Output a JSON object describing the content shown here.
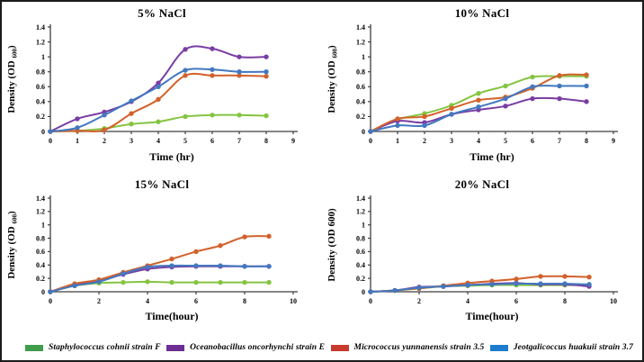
{
  "figure": {
    "background": "#ffffff",
    "border_color": "#1b1b1b",
    "axis_color": "#3f3f3f"
  },
  "legend": {
    "position": "bottom",
    "items": [
      {
        "label": "Staphylococcus cohnii strain F",
        "color": "#3f9d4c"
      },
      {
        "label": "Oceanobacillus oncorhynchi strain E",
        "color": "#6c2e93"
      },
      {
        "label": "Micrococcus yunnanensis strain 3.5",
        "color": "#c8392e"
      },
      {
        "label": "Jeotgalicoccus huakuii strain 3.7",
        "color": "#1d7ccc"
      }
    ]
  },
  "chart_data": [
    {
      "type": "line",
      "title": "5% NaCl",
      "xlabel": "Time (hr)",
      "ylabel": {
        "prefix": "Density (OD ",
        "sub": "600",
        "suffix": ")"
      },
      "xlim": [
        0,
        9
      ],
      "ylim": [
        0,
        1.4
      ],
      "xticks": [
        0,
        1,
        2,
        3,
        4,
        5,
        6,
        7,
        8,
        9
      ],
      "yticks": [
        0,
        0.2,
        0.4,
        0.6,
        0.8,
        1,
        1.2,
        1.4
      ],
      "grid": false,
      "x": [
        0,
        1,
        2,
        3,
        4,
        5,
        6,
        7,
        8
      ],
      "series": [
        {
          "name": "Staphylococcus cohnii strain F",
          "color": "#85c441",
          "values": [
            0,
            0.01,
            0.04,
            0.1,
            0.13,
            0.2,
            0.22,
            0.22,
            0.21
          ]
        },
        {
          "name": "Oceanobacillus oncorhynchi strain E",
          "color": "#7a3da3",
          "values": [
            0,
            0.17,
            0.26,
            0.4,
            0.65,
            1.1,
            1.11,
            1.0,
            1.0
          ]
        },
        {
          "name": "Micrococcus yunnanensis strain 3.5",
          "color": "#d2622b",
          "values": [
            0,
            0.01,
            0.02,
            0.24,
            0.43,
            0.75,
            0.75,
            0.75,
            0.74
          ]
        },
        {
          "name": "Jeotgalicoccus huakuii strain 3.7",
          "color": "#4278c0",
          "values": [
            0,
            0.05,
            0.22,
            0.41,
            0.6,
            0.82,
            0.83,
            0.8,
            0.8
          ]
        }
      ]
    },
    {
      "type": "line",
      "title": "10% NaCl",
      "xlabel": "Time (hr)",
      "ylabel": {
        "prefix": "Density (OD ",
        "sub": "600",
        "suffix": ")"
      },
      "xlim": [
        0,
        9
      ],
      "ylim": [
        0,
        1.4
      ],
      "xticks": [
        0,
        1,
        2,
        3,
        4,
        5,
        6,
        7,
        8,
        9
      ],
      "yticks": [
        0,
        0.2,
        0.4,
        0.6,
        0.8,
        1,
        1.2,
        1.4
      ],
      "grid": false,
      "x": [
        0,
        1,
        2,
        3,
        4,
        5,
        6,
        7,
        8
      ],
      "series": [
        {
          "name": "Staphylococcus cohnii strain F",
          "color": "#85c441",
          "values": [
            0,
            0.16,
            0.24,
            0.35,
            0.51,
            0.61,
            0.73,
            0.74,
            0.74
          ]
        },
        {
          "name": "Oceanobacillus oncorhynchi strain E",
          "color": "#7a3da3",
          "values": [
            0,
            0.14,
            0.12,
            0.23,
            0.29,
            0.34,
            0.44,
            0.44,
            0.4
          ]
        },
        {
          "name": "Micrococcus yunnanensis strain 3.5",
          "color": "#d2622b",
          "values": [
            0,
            0.17,
            0.2,
            0.31,
            0.42,
            0.46,
            0.58,
            0.75,
            0.76
          ]
        },
        {
          "name": "Jeotgalicoccus huakuii strain 3.7",
          "color": "#4278c0",
          "values": [
            0,
            0.08,
            0.08,
            0.23,
            0.33,
            0.44,
            0.6,
            0.61,
            0.61
          ]
        }
      ]
    },
    {
      "type": "line",
      "title": "15% NaCl",
      "xlabel": "Time(hour)",
      "ylabel": {
        "prefix": "Density (OD ",
        "sub": "600",
        "suffix": ")"
      },
      "xlim": [
        0,
        10
      ],
      "ylim": [
        0,
        1.4
      ],
      "xticks": [
        0,
        2,
        4,
        6,
        8,
        10
      ],
      "yticks": [
        0,
        0.2,
        0.4,
        0.6,
        0.8,
        1,
        1.2,
        1.4
      ],
      "grid": false,
      "x": [
        0,
        1,
        2,
        3,
        4,
        5,
        6,
        7,
        8,
        9
      ],
      "series": [
        {
          "name": "Staphylococcus cohnii strain F",
          "color": "#85c441",
          "values": [
            0,
            0.09,
            0.13,
            0.14,
            0.15,
            0.14,
            0.14,
            0.14,
            0.14,
            0.14
          ]
        },
        {
          "name": "Oceanobacillus oncorhynchi strain E",
          "color": "#7a3da3",
          "values": [
            0,
            0.1,
            0.16,
            0.26,
            0.34,
            0.37,
            0.38,
            0.38,
            0.38,
            0.38
          ]
        },
        {
          "name": "Micrococcus yunnanensis strain 3.5",
          "color": "#d2622b",
          "values": [
            0,
            0.12,
            0.18,
            0.29,
            0.39,
            0.49,
            0.6,
            0.69,
            0.82,
            0.83
          ]
        },
        {
          "name": "Jeotgalicoccus huakuii strain 3.7",
          "color": "#4278c0",
          "values": [
            0,
            0.09,
            0.15,
            0.27,
            0.37,
            0.39,
            0.39,
            0.39,
            0.38,
            0.38
          ]
        }
      ]
    },
    {
      "type": "line",
      "title": "20% NaCl",
      "xlabel": "Time(hour)",
      "ylabel": {
        "prefix": "Density (OD 600)",
        "sub": "",
        "suffix": ""
      },
      "xlim": [
        0,
        10
      ],
      "ylim": [
        0,
        1.4
      ],
      "xticks": [
        0,
        2,
        4,
        6,
        8,
        10
      ],
      "yticks": [
        0,
        0.2,
        0.4,
        0.6,
        0.8,
        1,
        1.2,
        1.4
      ],
      "grid": false,
      "x": [
        0,
        1,
        2,
        3,
        4,
        5,
        6,
        7,
        8,
        9
      ],
      "series": [
        {
          "name": "Staphylococcus cohnii strain F",
          "color": "#85c441",
          "values": [
            0,
            0.02,
            0.05,
            0.08,
            0.09,
            0.1,
            0.1,
            0.1,
            0.1,
            0.1
          ]
        },
        {
          "name": "Oceanobacillus oncorhynchi strain E",
          "color": "#7a3da3",
          "values": [
            0,
            0.02,
            0.07,
            0.08,
            0.1,
            0.12,
            0.13,
            0.11,
            0.11,
            0.08
          ]
        },
        {
          "name": "Micrococcus yunnanensis strain 3.5",
          "color": "#d2622b",
          "values": [
            0,
            0.02,
            0.05,
            0.09,
            0.13,
            0.16,
            0.19,
            0.23,
            0.23,
            0.22
          ]
        },
        {
          "name": "Jeotgalicoccus huakuii strain 3.7",
          "color": "#4278c0",
          "values": [
            0,
            0.02,
            0.06,
            0.08,
            0.1,
            0.11,
            0.12,
            0.12,
            0.12,
            0.11
          ]
        }
      ]
    }
  ]
}
